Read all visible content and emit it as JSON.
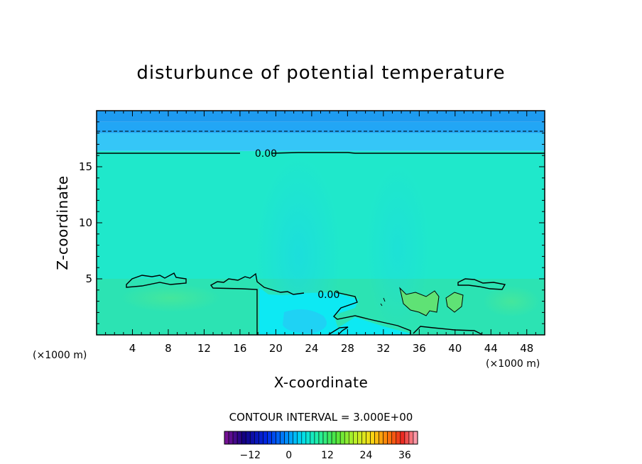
{
  "chart_data": {
    "type": "heatmap",
    "title": "disturbunce of potential temperature",
    "xlabel": "X-coordinate",
    "ylabel": "Z-coordinate",
    "x_unit_label": "(×1000 m)",
    "z_unit_label": "(×1000 m)",
    "xlim": [
      0,
      50
    ],
    "ylim": [
      0,
      20
    ],
    "x_ticks": [
      4,
      8,
      12,
      16,
      20,
      24,
      28,
      32,
      36,
      40,
      44,
      48
    ],
    "y_ticks": [
      5,
      10,
      15
    ],
    "contour_labels": [
      {
        "text": "0.00",
        "x": 17.5,
        "z": 16.2
      },
      {
        "text": "0.00",
        "x": 24.5,
        "z": 3.6
      }
    ],
    "contour_interval_text": "CONTOUR INTERVAL = 3.000E+00",
    "colorbar": {
      "range": [
        -20,
        40
      ],
      "ticks": [
        -12,
        0,
        12,
        24,
        36
      ]
    },
    "field_bands": [
      {
        "z_from": 19.0,
        "z_to": 20.0,
        "color": "#1e9bf0"
      },
      {
        "z_from": 18.0,
        "z_to": 19.0,
        "color": "#22a6f5"
      },
      {
        "z_from": 16.4,
        "z_to": 18.0,
        "color": "#35c6f7"
      },
      {
        "z_from": 5.0,
        "z_to": 16.4,
        "color": "#1fe8cb"
      },
      {
        "z_from": 0.0,
        "z_to": 5.0,
        "color": "#2ce3b3"
      }
    ]
  }
}
